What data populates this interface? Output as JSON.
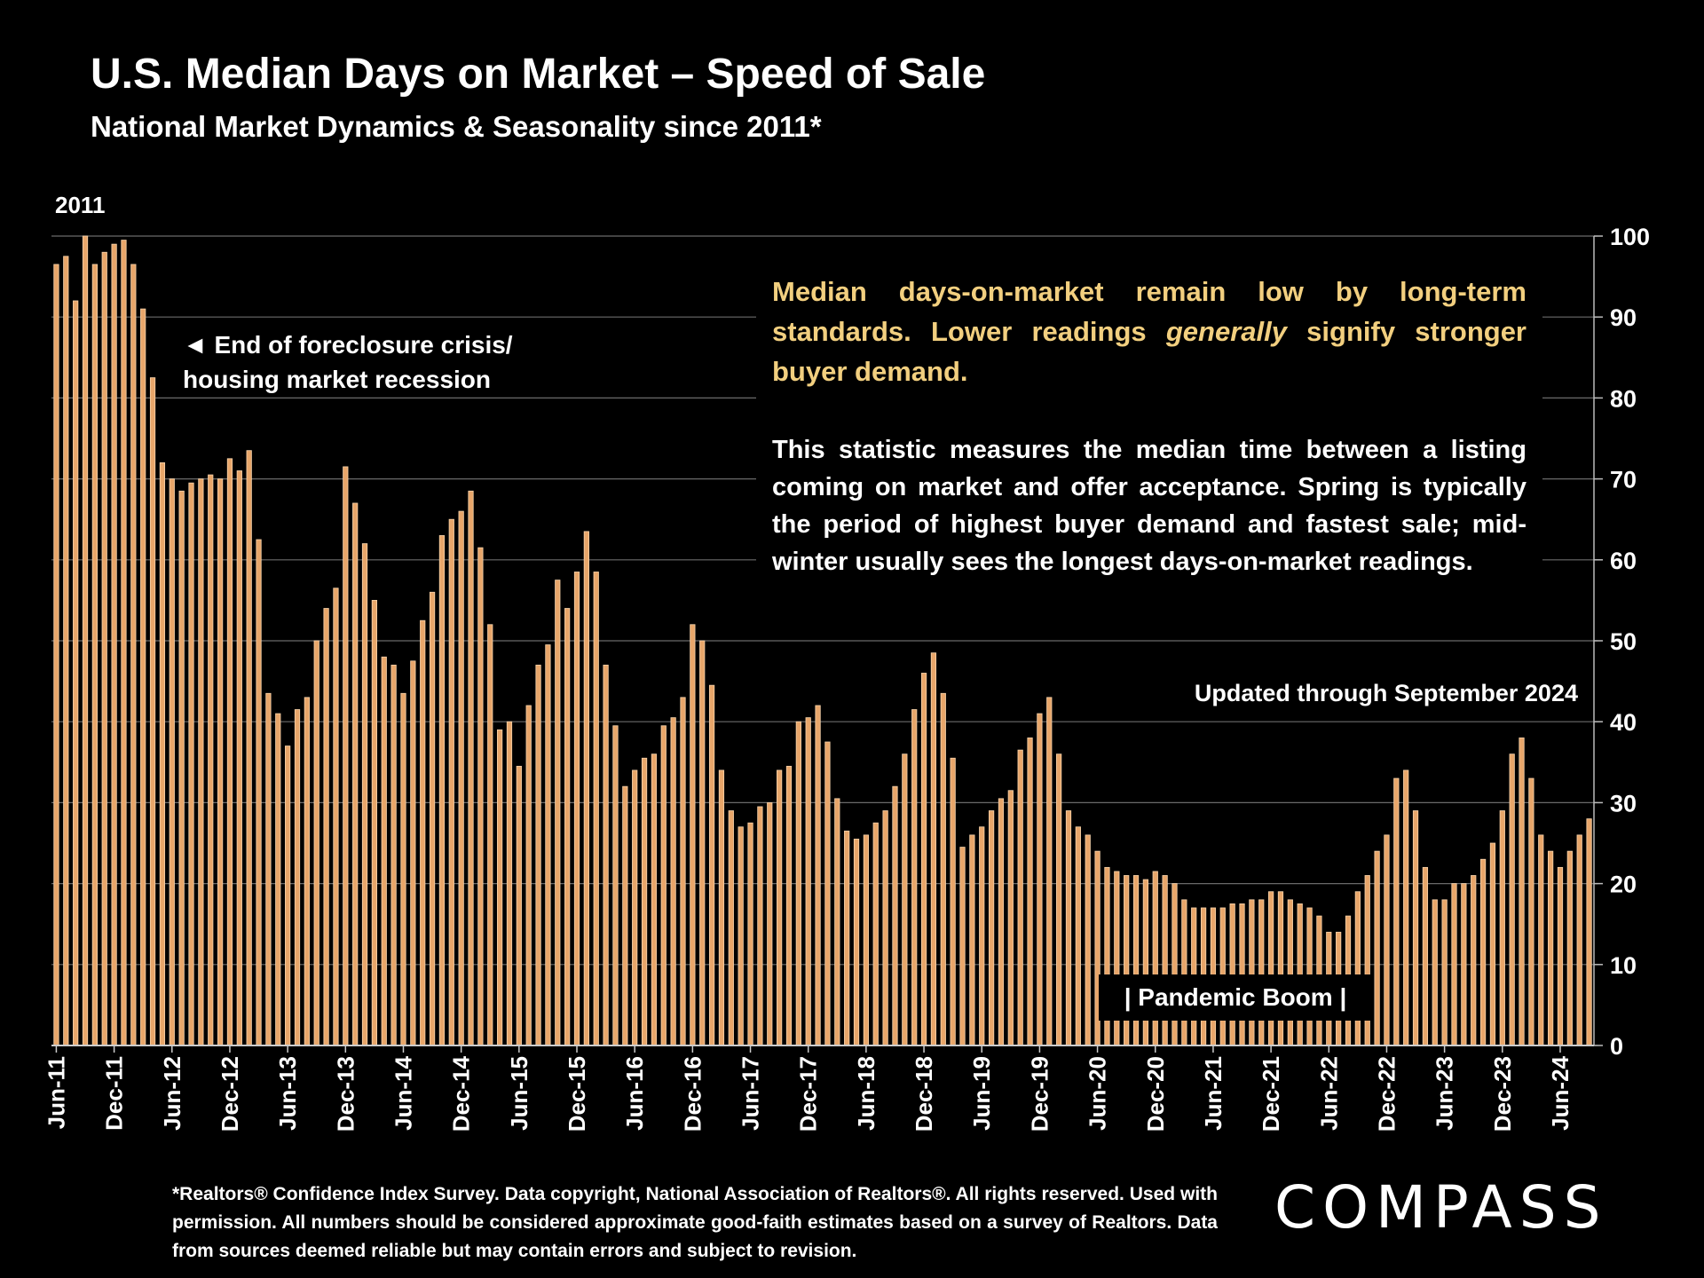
{
  "header": {
    "title": "U.S. Median Days on Market – Speed of Sale",
    "subtitle": "National Market Dynamics & Seasonality since 2011*"
  },
  "annotations": {
    "year_label": "2011",
    "foreclosure_line1": "◄ End of foreclosure crisis/",
    "foreclosure_line2": "housing market recession",
    "insight": "Median days-on-market remain low by long-term standards. Lower readings ",
    "insight_em": "generally",
    "insight_end": " signify stronger buyer demand.",
    "explanation": "This statistic measures the median time between a listing coming on market and offer acceptance. Spring is typically the period of highest buyer demand and fastest sale; mid-winter usually sees the longest days-on-market readings.",
    "updated": "Updated through September 2024",
    "pandemic": "| Pandemic Boom |"
  },
  "footer": {
    "footnote": "*Realtors® Confidence Index Survey. Data copyright, National Association of Realtors®. All rights reserved. Used with permission. All numbers should be considered approximate good-faith estimates based on a survey of Realtors. Data from sources deemed reliable but may contain errors and subject to revision.",
    "logo": "COMPASS"
  },
  "colors": {
    "bar": "#e8a66a",
    "bar_edge": "#f7d3ab",
    "grid": "#6a6a6a",
    "insight": "#f2cf7f",
    "background": "#000000"
  },
  "chart_data": {
    "type": "bar",
    "ylim": [
      0,
      100
    ],
    "yticks": [
      0,
      10,
      20,
      30,
      40,
      50,
      60,
      70,
      80,
      90,
      100
    ],
    "grid": true,
    "y_axis_position": "right",
    "xtick_labels": [
      "Jun-11",
      "Dec-11",
      "Jun-12",
      "Dec-12",
      "Jun-13",
      "Dec-13",
      "Jun-14",
      "Dec-14",
      "Jun-15",
      "Dec-15",
      "Jun-16",
      "Dec-16",
      "Jun-17",
      "Dec-17",
      "Jun-18",
      "Dec-18",
      "Jun-19",
      "Dec-19",
      "Jun-20",
      "Dec-20",
      "Jun-21",
      "Dec-21",
      "Jun-22",
      "Dec-22",
      "Jun-23",
      "Dec-23",
      "Jun-24"
    ],
    "xtick_every": 6,
    "start": "Jun-11",
    "end": "Sep-24",
    "values": [
      96.5,
      97.5,
      92,
      100,
      96.5,
      98,
      99,
      99.5,
      96.5,
      91,
      82.5,
      72,
      70,
      68.5,
      69.5,
      70,
      70.5,
      70,
      72.5,
      71,
      73.5,
      62.5,
      43.5,
      41,
      37,
      41.5,
      43,
      50,
      54,
      56.5,
      71.5,
      67,
      62,
      55,
      48,
      47,
      43.5,
      47.5,
      52.5,
      56,
      63,
      65,
      66,
      68.5,
      61.5,
      52,
      39,
      40,
      34.5,
      42,
      47,
      49.5,
      57.5,
      54,
      58.5,
      63.5,
      58.5,
      47,
      39.5,
      32,
      34,
      35.5,
      36,
      39.5,
      40.5,
      43,
      52,
      50,
      44.5,
      34,
      29,
      27,
      27.5,
      29.5,
      30,
      34,
      34.5,
      40,
      40.5,
      42,
      37.5,
      30.5,
      26.5,
      25.5,
      26,
      27.5,
      29,
      32,
      36,
      41.5,
      46,
      48.5,
      43.5,
      35.5,
      24.5,
      26,
      27,
      29,
      30.5,
      31.5,
      36.5,
      38,
      41,
      43,
      36,
      29,
      27,
      26,
      24,
      22,
      21.5,
      21,
      21,
      20.5,
      21.5,
      21,
      20,
      18,
      17,
      17,
      17,
      17,
      17.5,
      17.5,
      18,
      18,
      19,
      19,
      18,
      17.5,
      17,
      16,
      14,
      14,
      16,
      19,
      21,
      24,
      26,
      33,
      34,
      29,
      22,
      18,
      18,
      20,
      20,
      21,
      23,
      25,
      29,
      36,
      38,
      33,
      26,
      24,
      22,
      24,
      26,
      28
    ]
  }
}
